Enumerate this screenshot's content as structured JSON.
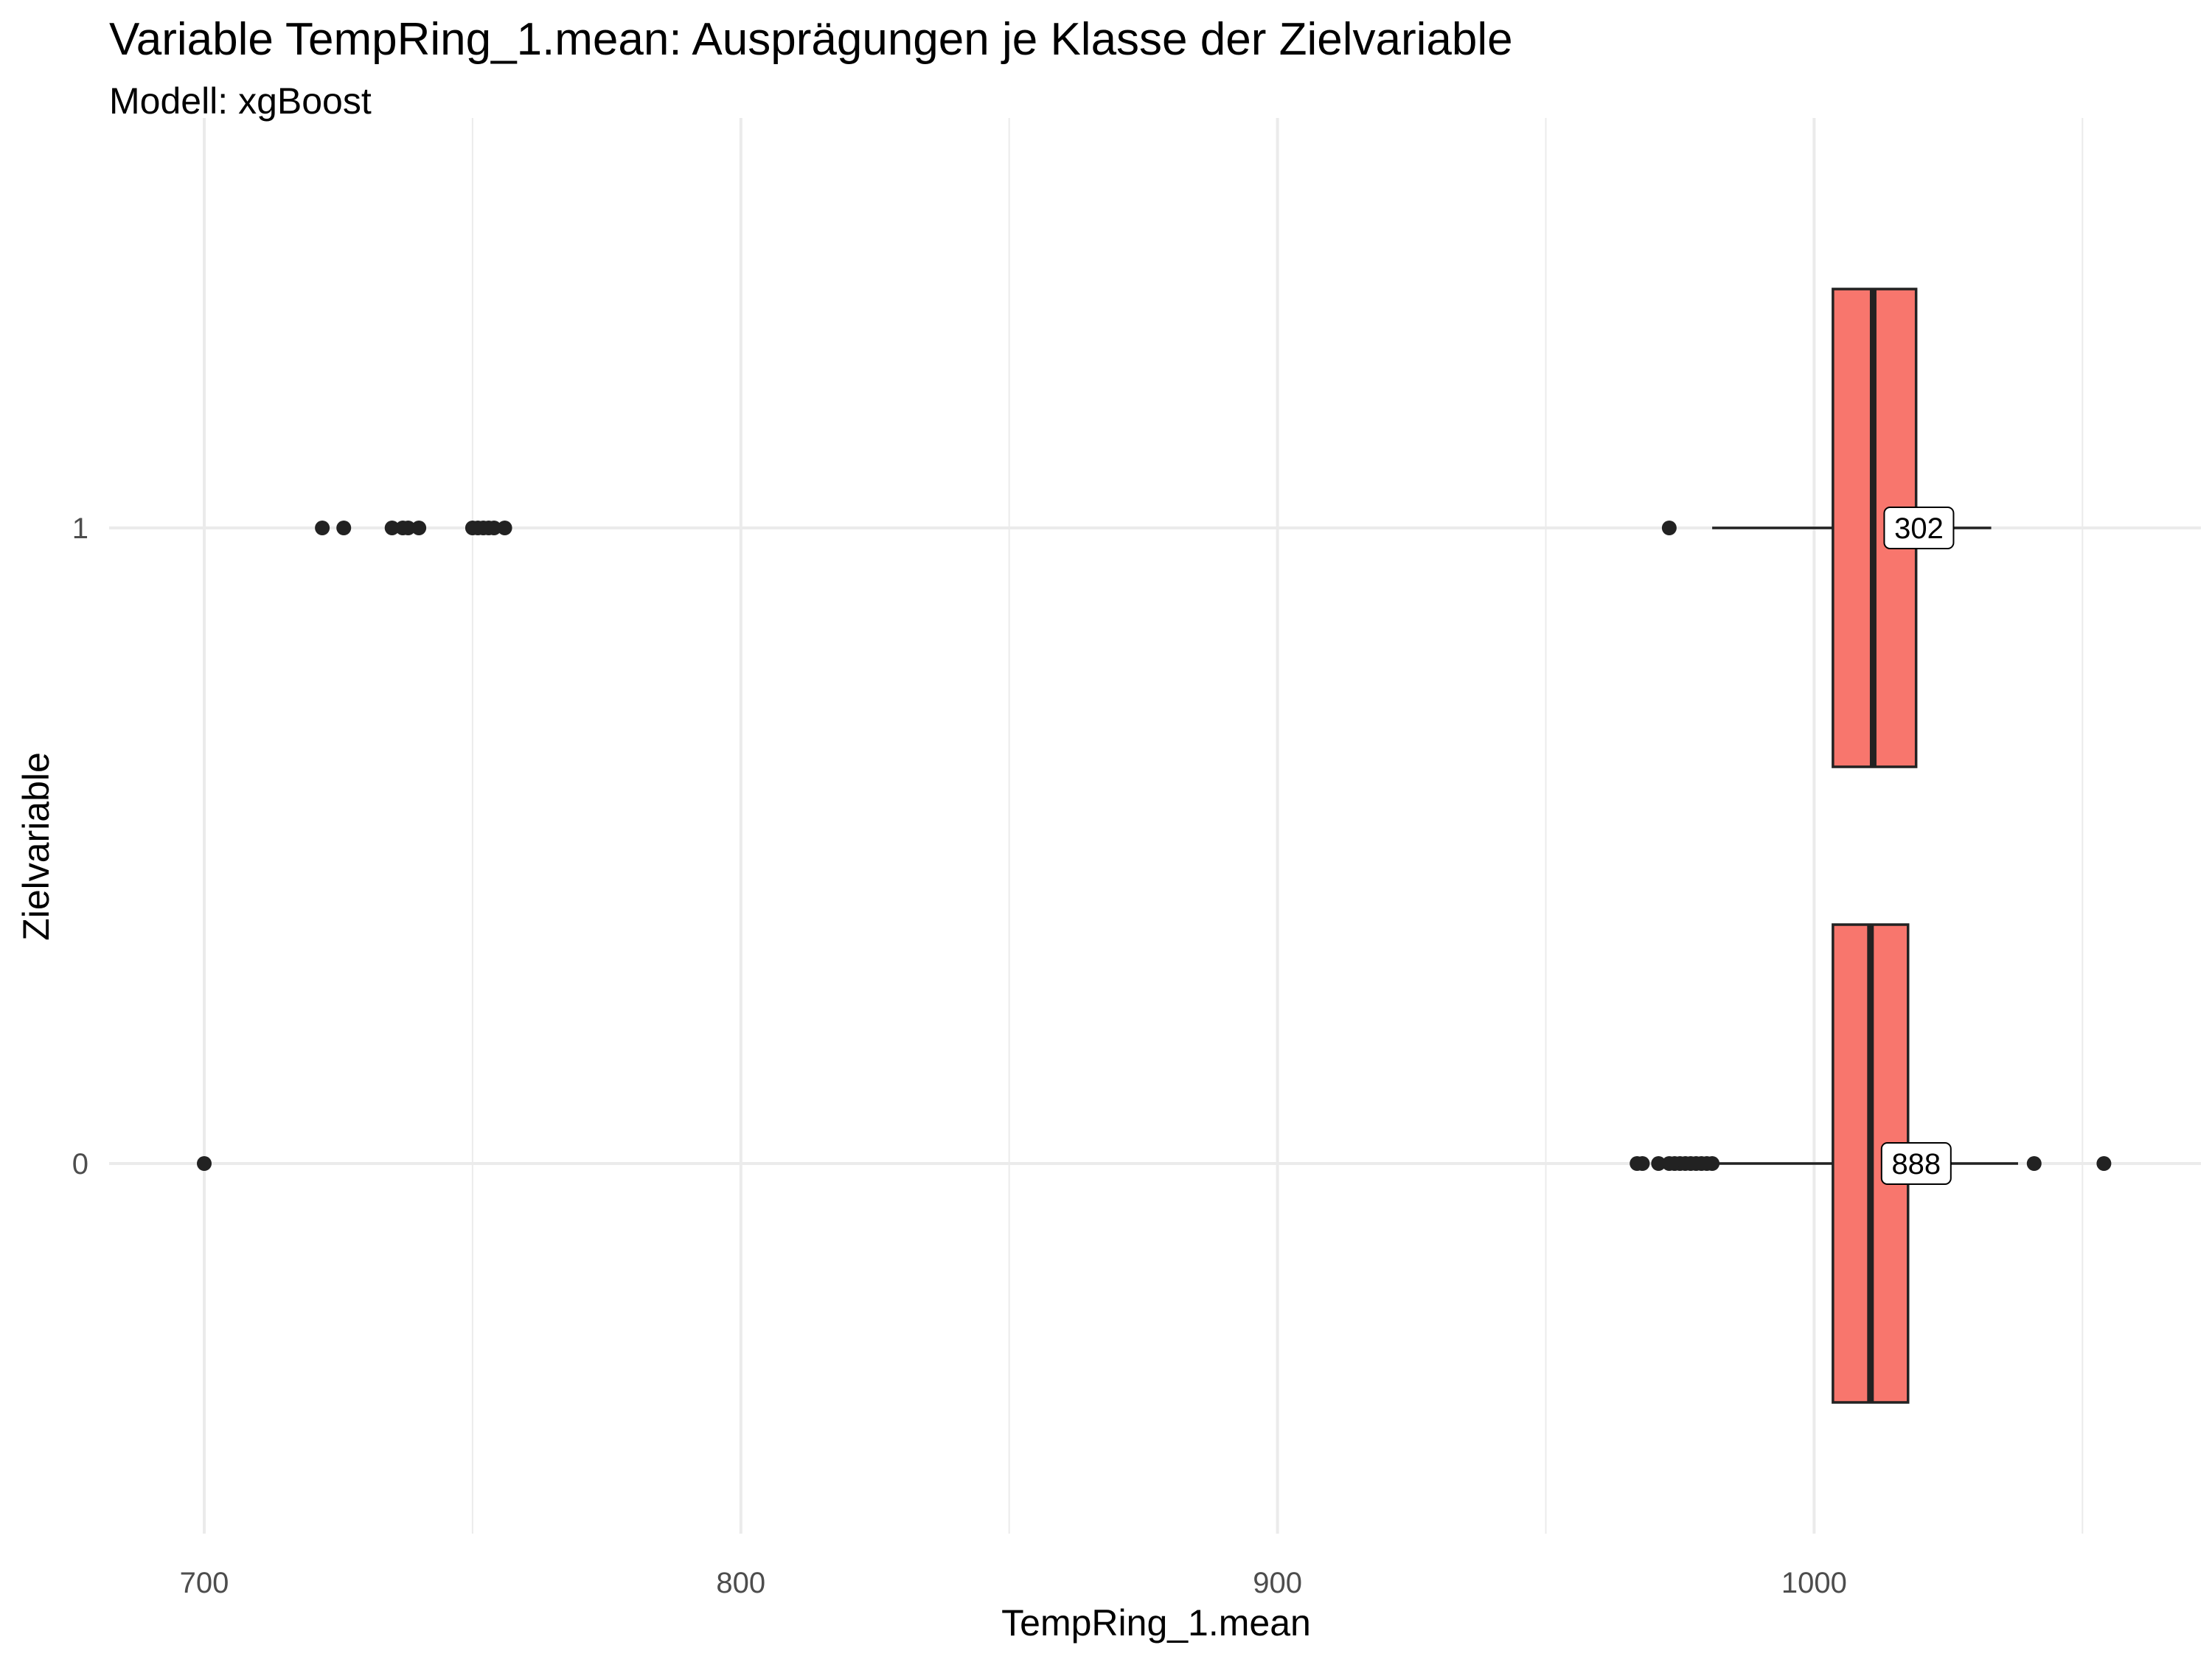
{
  "chart_data": {
    "type": "boxplot",
    "title": "Variable TempRing_1.mean: Ausprägungen je Klasse der Zielvariable",
    "subtitle": "Modell: xgBoost",
    "xlabel": "TempRing_1.mean",
    "ylabel": "Zielvariable",
    "xlim": [
      682,
      1072
    ],
    "x_ticks": [
      700,
      800,
      900,
      1000
    ],
    "x_minor_ticks": [
      750,
      850,
      950,
      1050
    ],
    "categories": [
      "0",
      "1"
    ],
    "grid": true,
    "box_color": "#F8766D",
    "series": [
      {
        "category": "1",
        "whisker_low": 981,
        "q1": 1003.5,
        "median": 1011,
        "q3": 1019,
        "whisker_high": 1033,
        "count_label": "302",
        "outliers": [
          722,
          726,
          735,
          737,
          738,
          740,
          750,
          751,
          752,
          753,
          754,
          756,
          973
        ]
      },
      {
        "category": "0",
        "whisker_low": 982,
        "q1": 1003.5,
        "median": 1010.5,
        "q3": 1017.5,
        "whisker_high": 1038,
        "count_label": "888",
        "outliers": [
          700,
          967,
          968,
          971,
          973,
          974,
          975,
          976,
          977,
          978,
          979,
          980,
          981,
          1041,
          1054
        ]
      }
    ]
  }
}
